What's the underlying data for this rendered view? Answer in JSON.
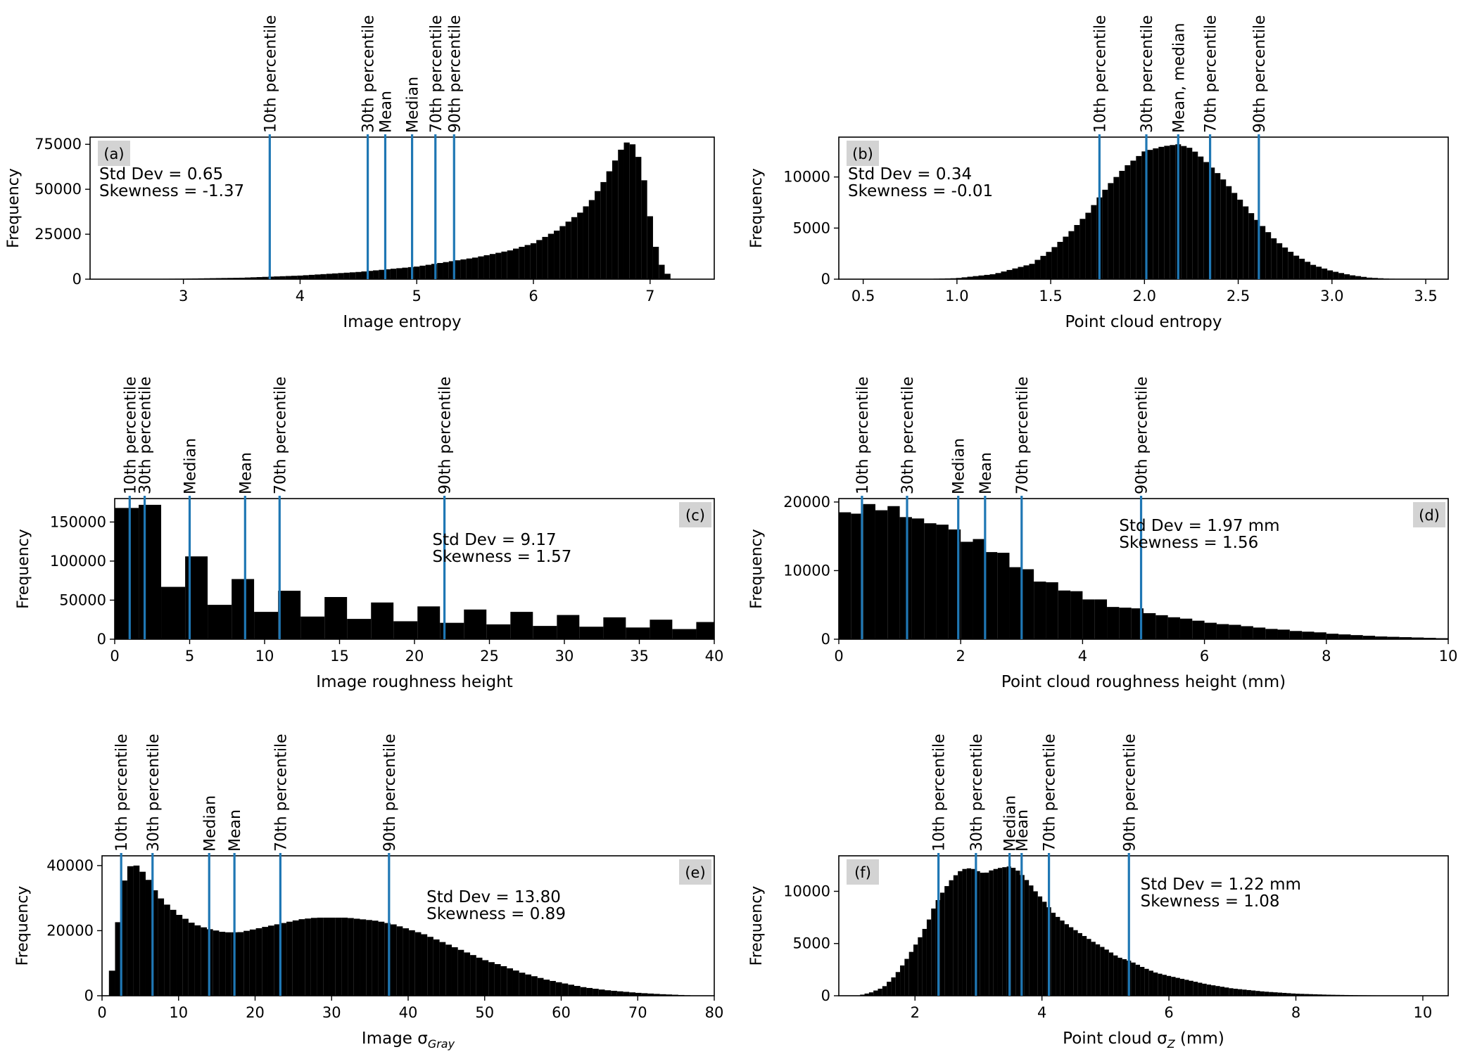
{
  "chart_data": [
    {
      "panel_label": "(a)",
      "type": "bar",
      "xlabel": "Image entropy",
      "xlabel_sub": "",
      "xlabel_suffix": "",
      "ylabel": "Frequency",
      "xlim": [
        2.2,
        7.55
      ],
      "ylim": [
        0,
        79000
      ],
      "xticks": [
        3,
        4,
        5,
        6,
        7
      ],
      "xtick_labels": [
        "3",
        "4",
        "5",
        "6",
        "7"
      ],
      "yticks": [
        0,
        25000,
        50000,
        75000
      ],
      "ytick_labels": [
        "0",
        "25000",
        "50000",
        "75000"
      ],
      "stats": [
        "Std Dev = 0.65",
        "Skewness = -1.37"
      ],
      "stats_placement": "top-left",
      "panel_label_placement": "top-left",
      "bin_width": 0.05,
      "histogram": {
        "x": [
          2.5,
          3.0,
          3.5,
          4.0,
          4.5,
          5.0,
          5.5,
          5.8,
          6.0,
          6.2,
          6.4,
          6.5,
          6.6,
          6.7,
          6.75,
          6.8,
          6.85,
          6.9,
          6.95,
          7.0,
          7.05,
          7.1,
          7.15,
          7.2
        ],
        "y": [
          0,
          300,
          800,
          2000,
          4000,
          7000,
          12000,
          16000,
          20000,
          27000,
          37000,
          44000,
          54000,
          66000,
          72000,
          76000,
          75000,
          68000,
          55000,
          35000,
          18000,
          8000,
          3000,
          0
        ]
      },
      "markers": [
        {
          "label": "10th percentile",
          "x": 3.74
        },
        {
          "label": "30th percentile",
          "x": 4.58
        },
        {
          "label": "Mean",
          "x": 4.73
        },
        {
          "label": "Median",
          "x": 4.96
        },
        {
          "label": "70th percentile",
          "x": 5.16
        },
        {
          "label": "90th percentile",
          "x": 5.32
        }
      ]
    },
    {
      "panel_label": "(b)",
      "type": "bar",
      "xlabel": "Point cloud entropy",
      "xlabel_sub": "",
      "xlabel_suffix": "",
      "ylabel": "Frequency",
      "xlim": [
        0.37,
        3.62
      ],
      "ylim": [
        0,
        13900
      ],
      "xticks": [
        0.5,
        1.0,
        1.5,
        2.0,
        2.5,
        3.0,
        3.5
      ],
      "xtick_labels": [
        "0.5",
        "1.0",
        "1.5",
        "2.0",
        "2.5",
        "3.0",
        "3.5"
      ],
      "yticks": [
        0,
        5000,
        10000
      ],
      "ytick_labels": [
        "0",
        "5000",
        "10000"
      ],
      "stats": [
        "Std Dev = 0.34",
        "Skewness = -0.01"
      ],
      "stats_placement": "top-left",
      "panel_label_placement": "top-left",
      "bin_width": 0.03,
      "histogram": {
        "x": [
          0.8,
          1.0,
          1.2,
          1.4,
          1.5,
          1.6,
          1.7,
          1.8,
          1.9,
          2.0,
          2.1,
          2.18,
          2.25,
          2.3,
          2.4,
          2.5,
          2.6,
          2.7,
          2.8,
          2.9,
          3.0,
          3.1,
          3.2,
          3.3,
          3.4
        ],
        "y": [
          0,
          100,
          500,
          1500,
          2800,
          4500,
          6500,
          9000,
          11000,
          12500,
          13000,
          13200,
          12800,
          12000,
          10200,
          8000,
          5800,
          3800,
          2400,
          1400,
          800,
          400,
          150,
          50,
          0
        ]
      },
      "markers": [
        {
          "label": "10th percentile",
          "x": 1.76
        },
        {
          "label": "30th percentile",
          "x": 2.01
        },
        {
          "label": "Mean, median",
          "x": 2.18
        },
        {
          "label": "70th percentile",
          "x": 2.35
        },
        {
          "label": "90th percentile",
          "x": 2.61
        }
      ]
    },
    {
      "panel_label": "(c)",
      "type": "bar",
      "xlabel": "Image roughness height",
      "xlabel_sub": "",
      "xlabel_suffix": "",
      "ylabel": "Frequency",
      "xlim": [
        0,
        40
      ],
      "ylim": [
        0,
        180000
      ],
      "xticks": [
        0,
        5,
        10,
        15,
        20,
        25,
        30,
        35,
        40
      ],
      "xtick_labels": [
        "0",
        "5",
        "10",
        "15",
        "20",
        "25",
        "30",
        "35",
        "40"
      ],
      "yticks": [
        0,
        50000,
        100000,
        150000
      ],
      "ytick_labels": [
        "0",
        "50000",
        "100000",
        "150000"
      ],
      "stats": [
        "Std Dev = 9.17",
        "Skewness = 1.57"
      ],
      "stats_placement": "right",
      "panel_label_placement": "top-right",
      "histogram": {
        "edges": [
          0,
          1.6,
          3.1,
          4.7,
          6.2,
          7.8,
          9.3,
          10.9,
          12.4,
          14.0,
          15.5,
          17.1,
          18.6,
          20.2,
          21.7,
          23.3,
          24.8,
          26.4,
          27.9,
          29.5,
          31.0,
          32.6,
          34.1,
          35.7,
          37.2,
          38.8,
          40
        ],
        "y": [
          168000,
          172000,
          67000,
          106000,
          44000,
          77000,
          35000,
          62000,
          29000,
          54000,
          26000,
          47000,
          23000,
          42000,
          21000,
          38000,
          19000,
          35000,
          17000,
          31000,
          16000,
          28000,
          15000,
          25000,
          13000,
          22000
        ]
      },
      "markers": [
        {
          "label": "10th percentile",
          "x": 1.0
        },
        {
          "label": "30th percentile",
          "x": 2.0
        },
        {
          "label": "Median",
          "x": 5.0
        },
        {
          "label": "Mean",
          "x": 8.7
        },
        {
          "label": "70th percentile",
          "x": 11.0
        },
        {
          "label": "90th percentile",
          "x": 22.0
        }
      ]
    },
    {
      "panel_label": "(d)",
      "type": "bar",
      "xlabel": "Point cloud roughness height (mm)",
      "xlabel_sub": "",
      "xlabel_suffix": "",
      "ylabel": "Frequency",
      "xlim": [
        0,
        10
      ],
      "ylim": [
        0,
        20500
      ],
      "xticks": [
        0,
        2,
        4,
        6,
        8,
        10
      ],
      "xtick_labels": [
        "0",
        "2",
        "4",
        "6",
        "8",
        "10"
      ],
      "yticks": [
        0,
        10000,
        20000
      ],
      "ytick_labels": [
        "0",
        "10000",
        "20000"
      ],
      "stats": [
        "Std Dev = 1.97 mm",
        "Skewness = 1.56"
      ],
      "stats_placement": "right",
      "panel_label_placement": "top-right",
      "bin_width": 0.2,
      "histogram": {
        "x": [
          0.1,
          0.3,
          0.5,
          0.7,
          0.9,
          1.1,
          1.3,
          1.5,
          1.7,
          1.9,
          2.1,
          2.3,
          2.5,
          2.7,
          2.9,
          3.1,
          3.3,
          3.5,
          3.7,
          3.9,
          4.1,
          4.3,
          4.5,
          4.7,
          4.9,
          5.1,
          5.3,
          5.5,
          5.7,
          5.9,
          6.1,
          6.3,
          6.5,
          6.7,
          6.9,
          7.1,
          7.3,
          7.5,
          7.7,
          7.9,
          8.1,
          8.3,
          8.5,
          8.7,
          8.9,
          9.1,
          9.3,
          9.5,
          9.7,
          9.9
        ],
        "y": [
          18500,
          18300,
          19700,
          18800,
          19400,
          17800,
          17600,
          16900,
          16700,
          16000,
          14200,
          14600,
          12700,
          12600,
          10500,
          10200,
          8400,
          8300,
          7100,
          7000,
          5800,
          5800,
          4700,
          4600,
          4500,
          3800,
          3500,
          3200,
          3000,
          2700,
          2400,
          2200,
          2100,
          1900,
          1700,
          1500,
          1400,
          1200,
          1100,
          1000,
          800,
          700,
          600,
          500,
          400,
          350,
          300,
          250,
          200,
          150
        ]
      },
      "markers": [
        {
          "label": "10th percentile",
          "x": 0.38
        },
        {
          "label": "30th percentile",
          "x": 1.12
        },
        {
          "label": "Median",
          "x": 1.96
        },
        {
          "label": "Mean",
          "x": 2.4
        },
        {
          "label": "70th percentile",
          "x": 3.0
        },
        {
          "label": "90th percentile",
          "x": 4.96
        }
      ]
    },
    {
      "panel_label": "(e)",
      "type": "bar",
      "xlabel": "Image σ",
      "xlabel_sub": "Gray",
      "xlabel_suffix": "",
      "ylabel": "Frequency",
      "xlim": [
        0,
        80
      ],
      "ylim": [
        0,
        43000
      ],
      "xticks": [
        0,
        10,
        20,
        30,
        40,
        50,
        60,
        70,
        80
      ],
      "xtick_labels": [
        "0",
        "10",
        "20",
        "30",
        "40",
        "50",
        "60",
        "70",
        "80"
      ],
      "yticks": [
        0,
        20000,
        40000
      ],
      "ytick_labels": [
        "0",
        "20000",
        "40000"
      ],
      "stats": [
        "Std Dev = 13.80",
        "Skewness = 0.89"
      ],
      "stats_placement": "right",
      "panel_label_placement": "top-right",
      "bin_width": 0.8,
      "histogram": {
        "x": [
          0.5,
          1,
          2,
          3,
          4,
          5,
          6,
          7,
          8,
          9,
          10,
          12,
          14,
          16,
          18,
          20,
          22,
          24,
          26,
          28,
          30,
          32,
          34,
          36,
          38,
          40,
          42,
          44,
          46,
          48,
          50,
          52,
          55,
          58,
          60,
          63,
          66,
          70,
          73,
          76,
          78
        ],
        "y": [
          0,
          2000,
          21000,
          37000,
          41000,
          39000,
          36000,
          32000,
          29000,
          27000,
          25000,
          22000,
          20500,
          19500,
          19500,
          20500,
          21500,
          22500,
          23500,
          24000,
          24000,
          24000,
          23500,
          23000,
          22000,
          20500,
          19000,
          17000,
          15000,
          13000,
          11000,
          9500,
          7000,
          5000,
          4000,
          2600,
          1700,
          900,
          500,
          200,
          0
        ]
      },
      "markers": [
        {
          "label": "10th percentile",
          "x": 2.5
        },
        {
          "label": "30th percentile",
          "x": 6.6
        },
        {
          "label": "Median",
          "x": 14.0
        },
        {
          "label": "Mean",
          "x": 17.3
        },
        {
          "label": "70th percentile",
          "x": 23.3
        },
        {
          "label": "90th percentile",
          "x": 37.5
        }
      ]
    },
    {
      "panel_label": "(f)",
      "type": "bar",
      "xlabel": "Point cloud σ",
      "xlabel_sub": "Z",
      "xlabel_suffix": " (mm)",
      "ylabel": "Frequency",
      "xlim": [
        0.8,
        10.4
      ],
      "ylim": [
        0,
        13400
      ],
      "xticks": [
        2,
        4,
        6,
        8,
        10
      ],
      "xtick_labels": [
        "2",
        "4",
        "6",
        "8",
        "10"
      ],
      "yticks": [
        0,
        5000,
        10000
      ],
      "ytick_labels": [
        "0",
        "5000",
        "10000"
      ],
      "stats": [
        "Std Dev = 1.22 mm",
        "Skewness = 1.08"
      ],
      "stats_placement": "right",
      "panel_label_placement": "top-left",
      "bin_width": 0.07,
      "histogram": {
        "x": [
          1.1,
          1.3,
          1.5,
          1.7,
          1.9,
          2.1,
          2.2,
          2.3,
          2.4,
          2.5,
          2.6,
          2.7,
          2.8,
          2.9,
          3.0,
          3.1,
          3.2,
          3.3,
          3.4,
          3.5,
          3.6,
          3.7,
          3.8,
          3.9,
          4.0,
          4.2,
          4.4,
          4.6,
          4.8,
          5.0,
          5.2,
          5.4,
          5.6,
          5.8,
          6.0,
          6.3,
          6.6,
          7.0,
          7.5,
          8.0,
          8.5,
          9.0,
          9.5,
          10.0
        ],
        "y": [
          0,
          300,
          800,
          2000,
          3800,
          5800,
          7000,
          8500,
          9600,
          10500,
          11300,
          11900,
          12200,
          12200,
          11900,
          11700,
          12000,
          12200,
          12300,
          12400,
          12100,
          11500,
          10800,
          10000,
          9300,
          7800,
          6800,
          6000,
          5200,
          4500,
          3700,
          3300,
          2700,
          2200,
          1900,
          1500,
          1100,
          700,
          400,
          200,
          100,
          50,
          20,
          0
        ]
      },
      "markers": [
        {
          "label": "10th percentile",
          "x": 2.37
        },
        {
          "label": "30th percentile",
          "x": 2.96
        },
        {
          "label": "Median",
          "x": 3.49
        },
        {
          "label": "Mean",
          "x": 3.68
        },
        {
          "label": "70th percentile",
          "x": 4.11
        },
        {
          "label": "90th percentile",
          "x": 5.37
        }
      ]
    }
  ],
  "colors": {
    "bar": "#000000",
    "marker_line": "#1f77b4",
    "panel_label_bg": "#d3d3d3",
    "axis": "#000000"
  }
}
